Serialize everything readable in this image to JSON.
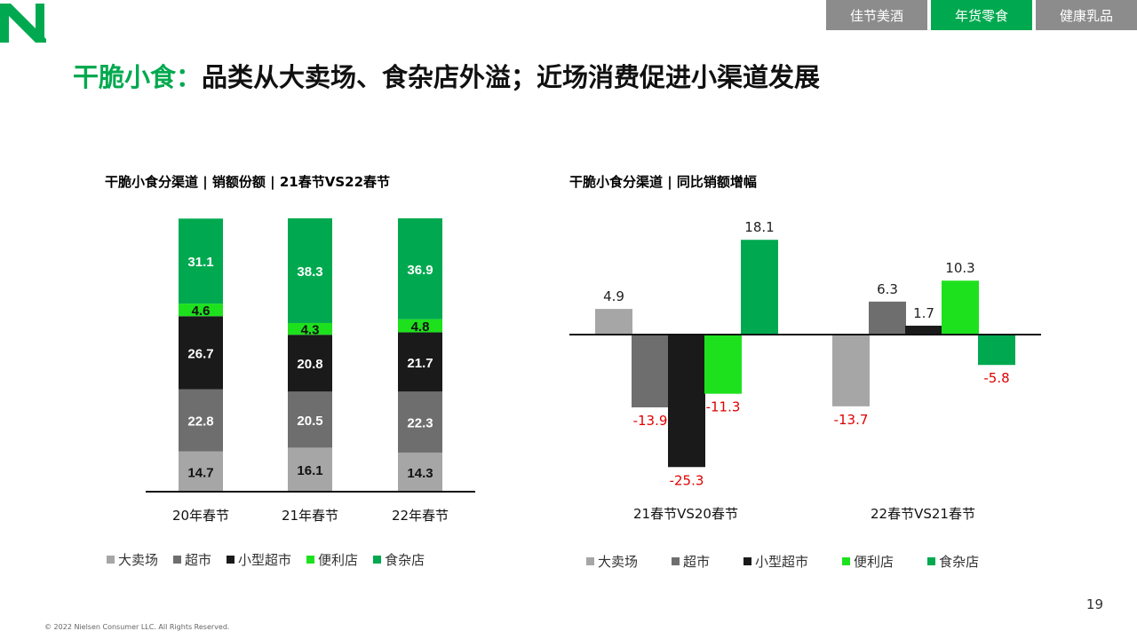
{
  "header": {
    "tabs": [
      {
        "label": "佳节美酒",
        "active": false
      },
      {
        "label": "年货零食",
        "active": true
      },
      {
        "label": "健康乳品",
        "active": false
      }
    ]
  },
  "title": {
    "lead": "干脆小食：",
    "rest": "品类从大卖场、食杂店外溢；近场消费促进小渠道发展"
  },
  "colors": {
    "brand_green": "#00a94f",
    "hypermarket": "#a6a6a6",
    "supermarket": "#6e6e6e",
    "mini_supermarket": "#1a1a1a",
    "convenience": "#1ee11e",
    "grocery": "#00a94f",
    "negative_label": "#e00000",
    "tab_inactive": "#8c8c8c"
  },
  "chart_data": [
    {
      "type": "bar",
      "stacked": true,
      "title": "干脆小食分渠道 | 销额份额 | 21春节VS22春节",
      "categories": [
        "20年春节",
        "21年春节",
        "22年春节"
      ],
      "series": [
        {
          "name": "大卖场",
          "values": [
            14.7,
            16.1,
            14.3
          ]
        },
        {
          "name": "超市",
          "values": [
            22.8,
            20.5,
            22.3
          ]
        },
        {
          "name": "小型超市",
          "values": [
            26.7,
            20.8,
            21.7
          ]
        },
        {
          "name": "便利店",
          "values": [
            4.6,
            4.3,
            4.8
          ]
        },
        {
          "name": "食杂店",
          "values": [
            31.1,
            38.3,
            36.9
          ]
        }
      ],
      "ylim": [
        0,
        100
      ],
      "legend": "bottom",
      "grid": false
    },
    {
      "type": "bar",
      "stacked": false,
      "title": "干脆小食分渠道 | 同比销额增幅",
      "categories": [
        "21春节VS20春节",
        "22春节VS21春节"
      ],
      "series": [
        {
          "name": "大卖场",
          "values": [
            4.9,
            -13.7
          ]
        },
        {
          "name": "超市",
          "values": [
            -13.9,
            6.3
          ]
        },
        {
          "name": "小型超市",
          "values": [
            -25.3,
            1.7
          ]
        },
        {
          "name": "便利店",
          "values": [
            -11.3,
            10.3
          ]
        },
        {
          "name": "食杂店",
          "values": [
            18.1,
            -5.8
          ]
        }
      ],
      "ylim": [
        -30,
        25
      ],
      "legend": "bottom",
      "grid": false
    }
  ],
  "page_number": "19",
  "footer": "© 2022 Nielsen Consumer LLC. All Rights Reserved."
}
